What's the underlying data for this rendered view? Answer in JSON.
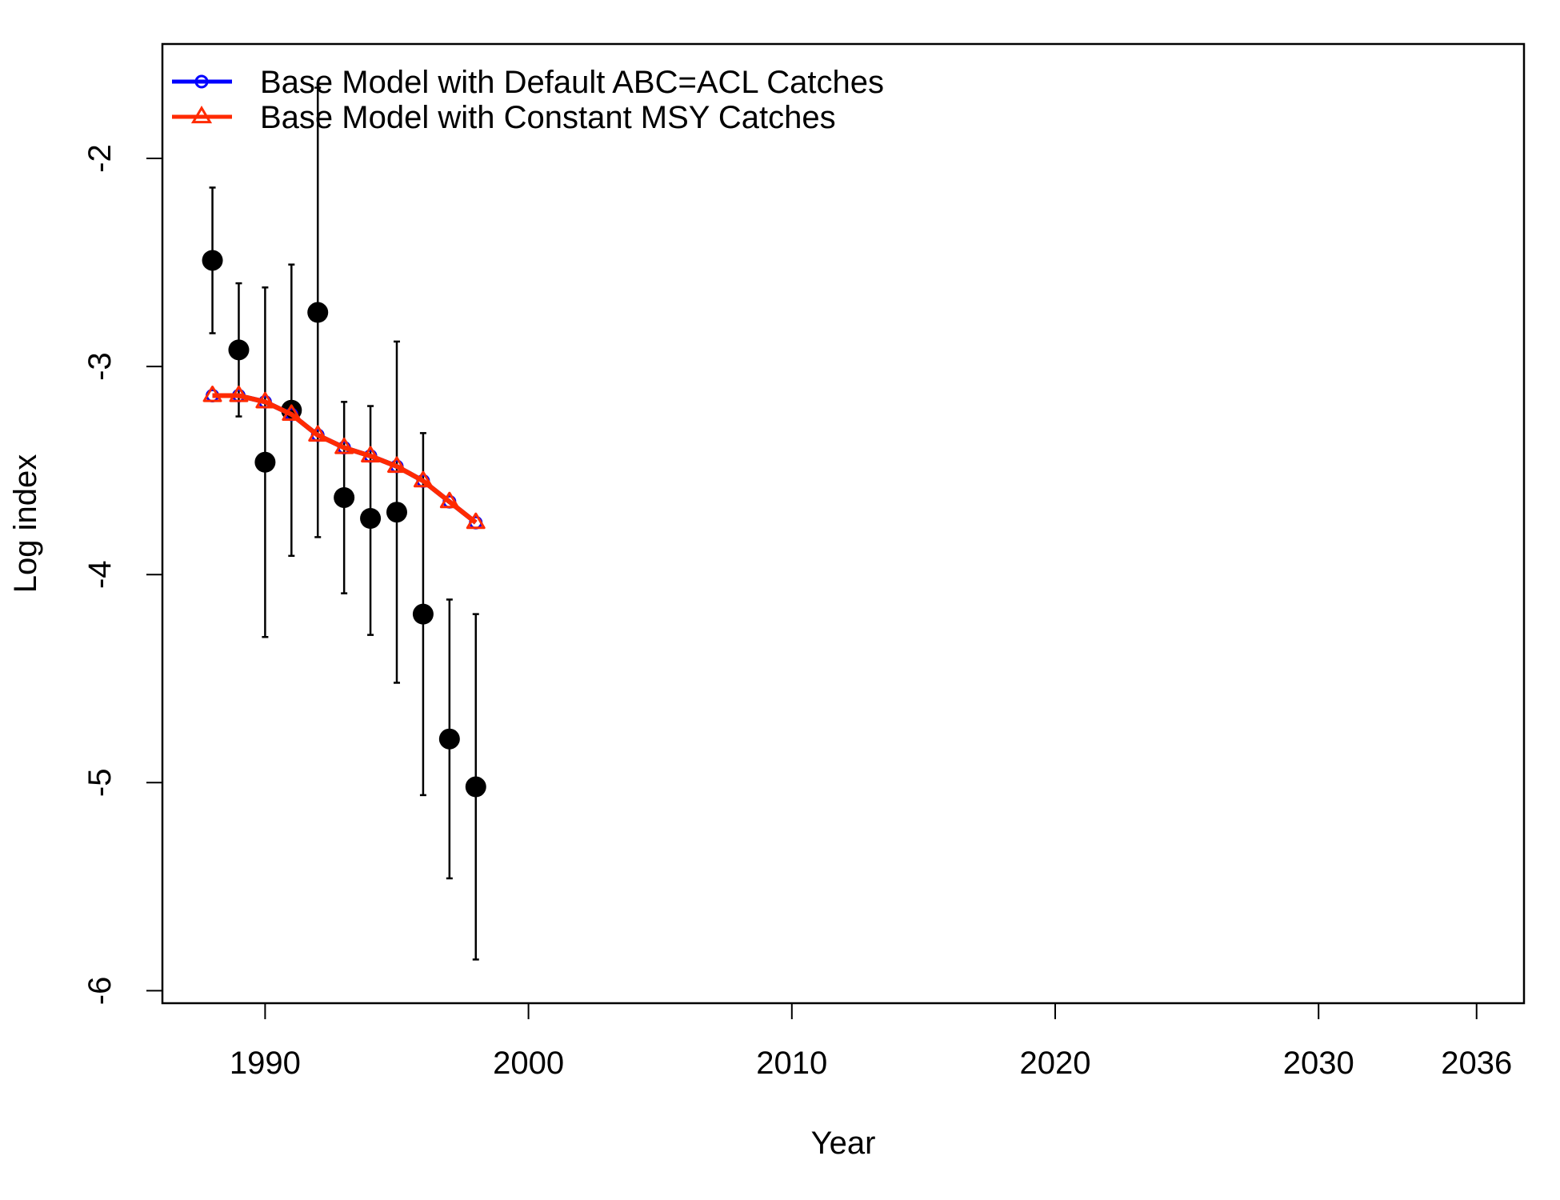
{
  "chart_data": {
    "type": "line",
    "xlabel": "Year",
    "ylabel": "Log index",
    "xlim": [
      1986.1,
      2037.8
    ],
    "ylim": [
      -6.06,
      -1.45
    ],
    "x_ticks": [
      1990,
      2000,
      2010,
      2020,
      2030,
      2036
    ],
    "y_ticks": [
      -2,
      -3,
      -4,
      -5,
      -6
    ],
    "x_tick_labels": [
      "1990",
      "2000",
      "2010",
      "2020",
      "2030",
      "2036"
    ],
    "y_tick_labels": [
      "-2",
      "-3",
      "-4",
      "-5",
      "-6"
    ],
    "legend_position": "top-left",
    "observed": {
      "x": [
        1988,
        1989,
        1990,
        1991,
        1992,
        1993,
        1994,
        1995,
        1996,
        1997,
        1998
      ],
      "y": [
        -2.49,
        -2.92,
        -3.46,
        -3.21,
        -2.74,
        -3.63,
        -3.73,
        -3.7,
        -4.19,
        -4.79,
        -5.02
      ],
      "lower": [
        -2.84,
        -3.24,
        -4.3,
        -3.91,
        -3.82,
        -4.09,
        -4.29,
        -4.52,
        -5.06,
        -5.46,
        -5.85
      ],
      "upper": [
        -2.14,
        -2.6,
        -2.62,
        -2.51,
        -1.66,
        -3.17,
        -3.19,
        -2.88,
        -3.32,
        -4.12,
        -4.19
      ],
      "color": "#000000"
    },
    "series": [
      {
        "name": "Base Model with Default ABC=ACL Catches",
        "x": [
          1988,
          1989,
          1990,
          1991,
          1992,
          1993,
          1994,
          1995,
          1996,
          1997,
          1998
        ],
        "values": [
          -3.14,
          -3.14,
          -3.17,
          -3.23,
          -3.33,
          -3.39,
          -3.43,
          -3.48,
          -3.55,
          -3.65,
          -3.75
        ],
        "color": "#0000ff",
        "marker": "circle"
      },
      {
        "name": "Base Model with Constant MSY Catches",
        "x": [
          1988,
          1989,
          1990,
          1991,
          1992,
          1993,
          1994,
          1995,
          1996,
          1997,
          1998
        ],
        "values": [
          -3.14,
          -3.14,
          -3.17,
          -3.23,
          -3.33,
          -3.39,
          -3.43,
          -3.48,
          -3.55,
          -3.65,
          -3.75
        ],
        "color": "#ff2a00",
        "marker": "triangle"
      }
    ]
  }
}
